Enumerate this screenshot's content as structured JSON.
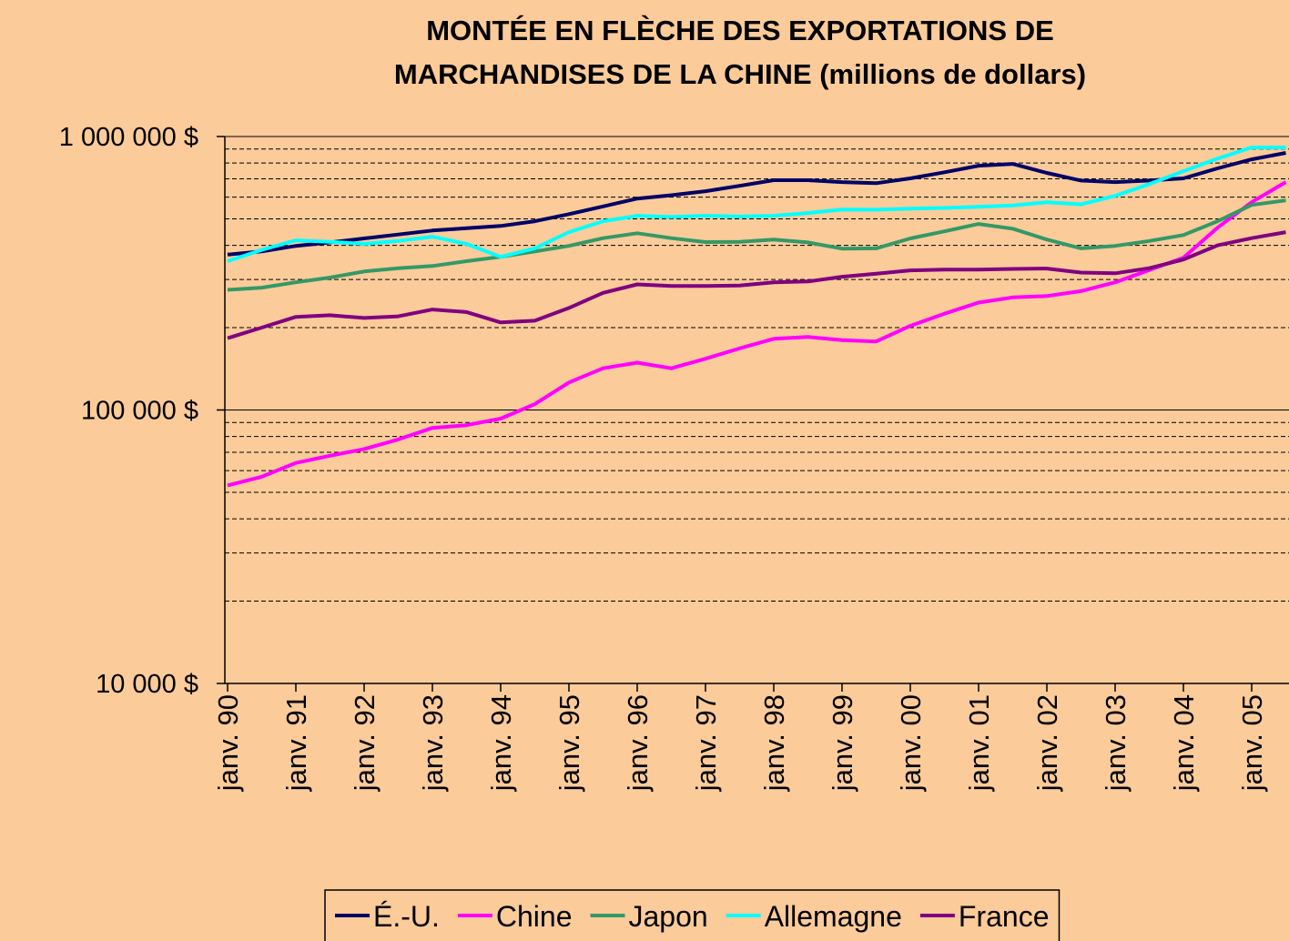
{
  "chart_data": {
    "type": "line",
    "title": [
      "MONTÉE EN FLÈCHE DES EXPORTATIONS DE",
      "MARCHANDISES DE LA CHINE (millions de dollars)"
    ],
    "categories": [
      "janv. 90",
      null,
      "janv. 91",
      null,
      "janv. 92",
      null,
      "janv. 93",
      null,
      "janv. 94",
      null,
      "janv. 95",
      null,
      "janv. 96",
      null,
      "janv. 97",
      null,
      "janv. 98",
      null,
      "janv. 99",
      null,
      "janv. 00",
      null,
      "janv. 01",
      null,
      "janv. 02",
      null,
      "janv. 03",
      null,
      "janv. 04",
      null,
      "janv. 05",
      null
    ],
    "series": [
      {
        "name": "É.-U.",
        "color": "#000066",
        "values": [
          370000,
          380000,
          398000,
          410000,
          424000,
          438000,
          453000,
          462000,
          471000,
          490000,
          520000,
          555000,
          593000,
          610000,
          631000,
          660000,
          692000,
          692000,
          681000,
          675000,
          703000,
          740000,
          782000,
          794000,
          736000,
          690000,
          681000,
          690000,
          703000,
          765000,
          825000,
          871000
        ]
      },
      {
        "name": "Chine",
        "color": "#ff00ff",
        "values": [
          53000,
          57000,
          64000,
          68000,
          72000,
          78000,
          86000,
          88000,
          93000,
          105000,
          126000,
          142000,
          149000,
          142000,
          154000,
          168000,
          182000,
          185000,
          180000,
          178000,
          203000,
          225000,
          247000,
          258000,
          261000,
          272000,
          293000,
          325000,
          360000,
          464000,
          575000,
          681000
        ]
      },
      {
        "name": "Japon",
        "color": "#339966",
        "values": [
          275000,
          280000,
          293000,
          305000,
          321000,
          330000,
          336000,
          350000,
          363000,
          380000,
          398000,
          425000,
          443000,
          425000,
          411000,
          412000,
          420000,
          410000,
          389000,
          390000,
          424000,
          450000,
          479000,
          460000,
          420000,
          390000,
          398000,
          415000,
          436000,
          490000,
          562000,
          584000
        ]
      },
      {
        "name": "Allemagne",
        "color": "#00ffff",
        "values": [
          350000,
          385000,
          417000,
          412000,
          405000,
          415000,
          430000,
          405000,
          363000,
          390000,
          447000,
          490000,
          513000,
          508000,
          513000,
          510000,
          513000,
          525000,
          541000,
          540000,
          545000,
          548000,
          553000,
          560000,
          575000,
          565000,
          607000,
          670000,
          747000,
          830000,
          912000,
          912000
        ]
      },
      {
        "name": "France",
        "color": "#800080",
        "values": [
          183000,
          200000,
          219000,
          222000,
          217000,
          220000,
          233000,
          228000,
          209000,
          212000,
          236000,
          268000,
          288000,
          284000,
          284000,
          285000,
          293000,
          295000,
          307000,
          315000,
          324000,
          326000,
          326000,
          328000,
          329000,
          318000,
          316000,
          330000,
          355000,
          400000,
          425000,
          447000
        ]
      }
    ],
    "log_scale": true,
    "ylim": [
      10000,
      1000000
    ],
    "yticks": [
      {
        "value": 10000,
        "label": "10 000 $"
      },
      {
        "value": 100000,
        "label": "100 000 $"
      },
      {
        "value": 1000000,
        "label": "1 000 000 $"
      }
    ],
    "y_minor_grid": [
      20000,
      30000,
      40000,
      50000,
      60000,
      70000,
      80000,
      90000,
      200000,
      300000,
      400000,
      500000,
      600000,
      700000,
      800000,
      900000
    ],
    "grid": true,
    "legend": "bottom"
  }
}
